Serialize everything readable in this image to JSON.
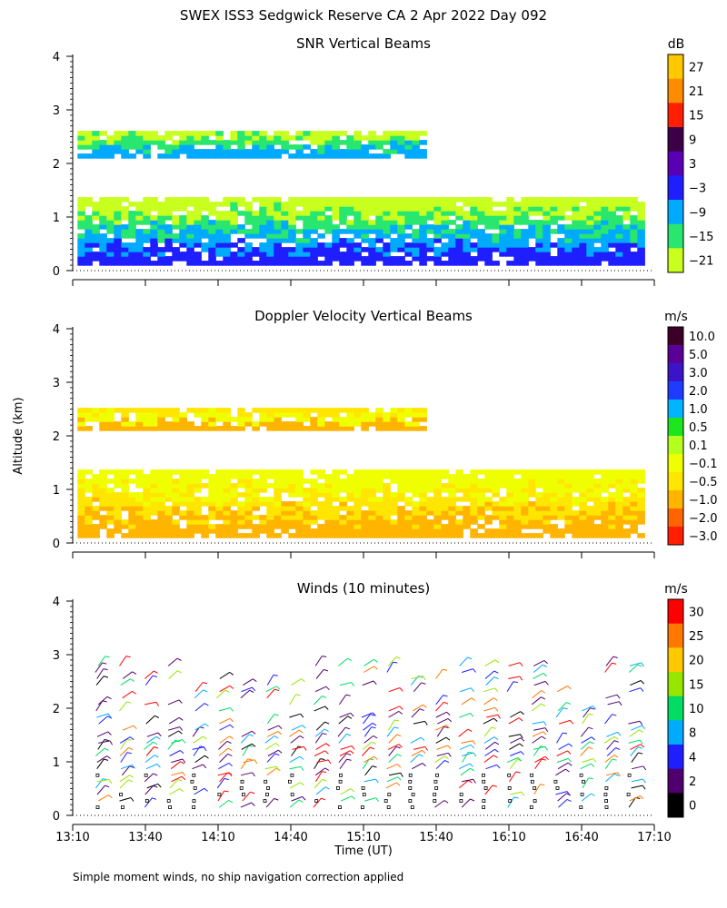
{
  "figure": {
    "title": "SWEX ISS3 Sedgwick Reserve CA   2 Apr 2022 Day 092",
    "ylabel": "Altitude (km)",
    "xlabel": "Time (UT)",
    "footnote": "Simple moment winds, no ship navigation correction applied"
  },
  "chart_data": [
    {
      "type": "heatmap",
      "title": "SNR Vertical Beams",
      "ylabel": "Altitude (km)",
      "ylim": [
        0,
        4
      ],
      "y_ticks": [
        0,
        1,
        2,
        3,
        4
      ],
      "xlim": [
        13.1667,
        17.1667
      ],
      "colorbar_unit": "dB",
      "colorbar_ticks": [
        "27",
        "21",
        "15",
        "9",
        "3",
        "−3",
        "−9",
        "−15",
        "−21"
      ],
      "colorbar_colors": [
        "#ffc800",
        "#ff8c00",
        "#ff1e00",
        "#3c0046",
        "#5a00b4",
        "#1e1eff",
        "#00aaff",
        "#28e66e",
        "#c8ff1e"
      ],
      "layers": [
        {
          "top": 2.6,
          "bottom": 2.1,
          "start": 13.2,
          "end": 15.6,
          "colors": [
            "#c8ff1e",
            "#28e66e",
            "#00aaff"
          ]
        },
        {
          "top": 1.3,
          "bottom": 0.1,
          "start": 13.2,
          "end": 17.1,
          "colors": [
            "#c8ff1e",
            "#28e66e",
            "#00aaff",
            "#1e1eff"
          ]
        }
      ]
    },
    {
      "type": "heatmap",
      "title": "Doppler Velocity Vertical Beams",
      "ylim": [
        0,
        4
      ],
      "y_ticks": [
        0,
        1,
        2,
        3,
        4
      ],
      "xlim": [
        13.1667,
        17.1667
      ],
      "colorbar_unit": "m/s",
      "colorbar_ticks": [
        "10.0",
        "5.0",
        "3.0",
        "2.0",
        "1.0",
        "0.5",
        "0.1",
        "−0.1",
        "−0.5",
        "−1.0",
        "−2.0",
        "−3.0"
      ],
      "colorbar_colors": [
        "#3c0028",
        "#5a0096",
        "#3c14c8",
        "#1e3cff",
        "#00b4ff",
        "#1ee61e",
        "#b4ff1e",
        "#f0ff00",
        "#ffe600",
        "#ffb400",
        "#ff6400",
        "#ff1e00"
      ],
      "layers": [
        {
          "top": 2.5,
          "bottom": 2.1,
          "start": 13.2,
          "end": 15.6,
          "colors": [
            "#ffe600",
            "#f0ff00",
            "#ffb400"
          ]
        },
        {
          "top": 1.3,
          "bottom": 0.1,
          "start": 13.2,
          "end": 17.1,
          "colors": [
            "#f0ff00",
            "#ffe600",
            "#ffb400"
          ]
        }
      ]
    },
    {
      "type": "scatter",
      "title": "Winds (10 minutes)",
      "ylim": [
        0,
        4
      ],
      "y_ticks": [
        0,
        1,
        2,
        3,
        4
      ],
      "xlim": [
        13.1667,
        17.1667
      ],
      "x_tick_labels": [
        "13:10",
        "13:40",
        "14:10",
        "14:40",
        "15:10",
        "15:40",
        "16:10",
        "16:40",
        "17:10"
      ],
      "x_tick_values": [
        13.1667,
        13.6667,
        14.1667,
        14.6667,
        15.1667,
        15.6667,
        16.1667,
        16.6667,
        17.1667
      ],
      "colorbar_unit": "m/s",
      "colorbar_ticks": [
        "30",
        "25",
        "20",
        "15",
        "10",
        "8",
        "4",
        "2",
        "0"
      ],
      "colorbar_colors": [
        "#ff0000",
        "#ff7800",
        "#ffc800",
        "#96e600",
        "#00dc64",
        "#00aaff",
        "#1e1eff",
        "#50006e",
        "#000000"
      ],
      "series": [
        {
          "name": "wind barbs",
          "interval_minutes": 10,
          "ymin": 0.15,
          "ymax": 2.9
        }
      ]
    }
  ]
}
